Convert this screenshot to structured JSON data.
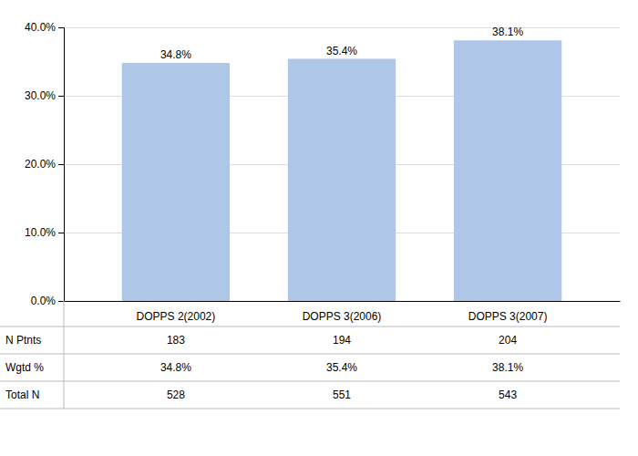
{
  "chart_data": {
    "type": "bar",
    "categories": [
      "DOPPS 2(2002)",
      "DOPPS 3(2006)",
      "DOPPS 3(2007)"
    ],
    "values": [
      34.8,
      35.4,
      38.1
    ],
    "value_labels": [
      "34.8%",
      "35.4%",
      "38.1%"
    ],
    "data_labels": true,
    "color": "#aec6e8",
    "ylim": [
      0,
      40
    ],
    "yticks": [
      {
        "value": 0,
        "label": "0.0%"
      },
      {
        "value": 10,
        "label": "10.0%"
      },
      {
        "value": 20,
        "label": "20.0%"
      },
      {
        "value": 30,
        "label": "30.0%"
      },
      {
        "value": 40,
        "label": "40.0%"
      }
    ],
    "grid": true,
    "table": {
      "row_labels": [
        "N Ptnts",
        "Wgtd %",
        "Total N"
      ],
      "rows": [
        [
          183,
          194,
          204
        ],
        [
          "34.8%",
          "35.4%",
          "38.1%"
        ],
        [
          528,
          551,
          543
        ]
      ]
    }
  }
}
